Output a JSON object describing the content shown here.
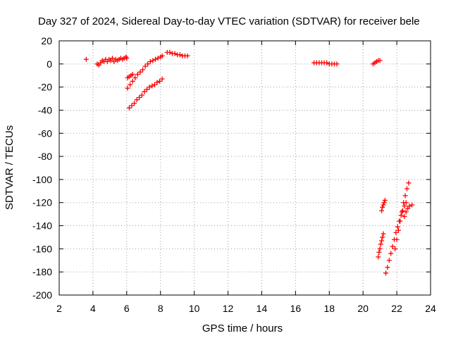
{
  "chart_data": {
    "type": "scatter",
    "title": "Day 327 of 2024, Sidereal Day-to-day VTEC variation (SDTVAR) for receiver bele",
    "xlabel": "GPS time / hours",
    "ylabel": "SDTVAR / TECUs",
    "xlim": [
      2,
      24
    ],
    "ylim": [
      -200,
      20
    ],
    "xticks": [
      2,
      4,
      6,
      8,
      10,
      12,
      14,
      16,
      18,
      20,
      22,
      24
    ],
    "yticks": [
      -200,
      -180,
      -160,
      -140,
      -120,
      -100,
      -80,
      -60,
      -40,
      -20,
      0,
      20
    ],
    "grid": true,
    "marker": "+",
    "color": "#ff0000",
    "series": [
      {
        "name": "isolated-point",
        "points": [
          [
            3.6,
            4
          ]
        ]
      },
      {
        "name": "track-04-06",
        "points": [
          [
            4.25,
            0
          ],
          [
            4.35,
            -1
          ],
          [
            4.45,
            1
          ],
          [
            4.55,
            3
          ],
          [
            4.65,
            2
          ],
          [
            4.75,
            4
          ],
          [
            4.85,
            2
          ],
          [
            4.95,
            4
          ],
          [
            5.05,
            3
          ],
          [
            5.15,
            5
          ],
          [
            5.25,
            2
          ],
          [
            5.35,
            4
          ],
          [
            5.45,
            3
          ],
          [
            5.55,
            4
          ],
          [
            5.65,
            5
          ],
          [
            5.75,
            4
          ],
          [
            5.85,
            5
          ],
          [
            5.95,
            6
          ],
          [
            6.0,
            5
          ]
        ]
      },
      {
        "name": "track-06-short",
        "points": [
          [
            6.05,
            -12
          ],
          [
            6.15,
            -11
          ],
          [
            6.25,
            -10
          ],
          [
            6.35,
            -9
          ]
        ]
      },
      {
        "name": "track-06-08-upper",
        "points": [
          [
            6.05,
            -21
          ],
          [
            6.2,
            -18
          ],
          [
            6.35,
            -15
          ],
          [
            6.5,
            -12
          ],
          [
            6.65,
            -9
          ],
          [
            6.8,
            -7
          ],
          [
            6.95,
            -5
          ],
          [
            7.1,
            -2
          ],
          [
            7.25,
            0
          ],
          [
            7.4,
            2
          ],
          [
            7.55,
            3
          ],
          [
            7.7,
            4
          ],
          [
            7.85,
            5
          ],
          [
            8.0,
            6
          ],
          [
            8.1,
            7
          ]
        ]
      },
      {
        "name": "track-06-08-lower",
        "points": [
          [
            6.15,
            -38
          ],
          [
            6.3,
            -36
          ],
          [
            6.45,
            -34
          ],
          [
            6.6,
            -31
          ],
          [
            6.75,
            -29
          ],
          [
            6.9,
            -27
          ],
          [
            7.05,
            -24
          ],
          [
            7.2,
            -22
          ],
          [
            7.35,
            -20
          ],
          [
            7.5,
            -19
          ],
          [
            7.65,
            -18
          ],
          [
            7.8,
            -16
          ],
          [
            7.95,
            -15
          ],
          [
            8.1,
            -13
          ]
        ]
      },
      {
        "name": "track-08-10",
        "points": [
          [
            8.4,
            10
          ],
          [
            8.55,
            10
          ],
          [
            8.7,
            9
          ],
          [
            8.85,
            9
          ],
          [
            9.0,
            8
          ],
          [
            9.15,
            8
          ],
          [
            9.3,
            7
          ],
          [
            9.45,
            7
          ],
          [
            9.6,
            7
          ]
        ]
      },
      {
        "name": "track-17-18",
        "points": [
          [
            17.1,
            1
          ],
          [
            17.25,
            1
          ],
          [
            17.4,
            1
          ],
          [
            17.55,
            1
          ],
          [
            17.7,
            1
          ],
          [
            17.85,
            1
          ],
          [
            18.0,
            0
          ],
          [
            18.15,
            0
          ],
          [
            18.3,
            0
          ],
          [
            18.45,
            0
          ]
        ]
      },
      {
        "name": "track-20-21",
        "points": [
          [
            20.6,
            0
          ],
          [
            20.7,
            1
          ],
          [
            20.8,
            2
          ],
          [
            20.9,
            3
          ],
          [
            21.0,
            3
          ]
        ]
      },
      {
        "name": "track-21-short",
        "points": [
          [
            21.1,
            -127
          ],
          [
            21.15,
            -124
          ],
          [
            21.2,
            -122
          ],
          [
            21.25,
            -120
          ],
          [
            21.3,
            -118
          ]
        ]
      },
      {
        "name": "track-21-long",
        "points": [
          [
            20.9,
            -167
          ],
          [
            20.95,
            -163
          ],
          [
            21.0,
            -160
          ],
          [
            21.05,
            -156
          ],
          [
            21.1,
            -153
          ],
          [
            21.15,
            -150
          ],
          [
            21.2,
            -147
          ]
        ]
      },
      {
        "name": "track-21-23-main",
        "points": [
          [
            21.35,
            -181
          ],
          [
            21.45,
            -176
          ],
          [
            21.55,
            -170
          ],
          [
            21.65,
            -164
          ],
          [
            21.75,
            -158
          ],
          [
            21.85,
            -152
          ],
          [
            21.95,
            -146
          ],
          [
            22.05,
            -141
          ],
          [
            22.15,
            -136
          ],
          [
            22.25,
            -131
          ],
          [
            22.35,
            -127
          ],
          [
            22.45,
            -123
          ],
          [
            22.55,
            -120
          ]
        ]
      },
      {
        "name": "track-22-23-steep",
        "points": [
          [
            21.9,
            -160
          ],
          [
            22.0,
            -152
          ],
          [
            22.1,
            -144
          ],
          [
            22.2,
            -136
          ],
          [
            22.3,
            -128
          ],
          [
            22.4,
            -120
          ],
          [
            22.5,
            -114
          ],
          [
            22.6,
            -108
          ],
          [
            22.7,
            -103
          ]
        ]
      },
      {
        "name": "track-22-23-end",
        "points": [
          [
            22.45,
            -132
          ],
          [
            22.55,
            -128
          ],
          [
            22.65,
            -125
          ],
          [
            22.75,
            -123
          ],
          [
            22.9,
            -122
          ]
        ]
      }
    ]
  }
}
